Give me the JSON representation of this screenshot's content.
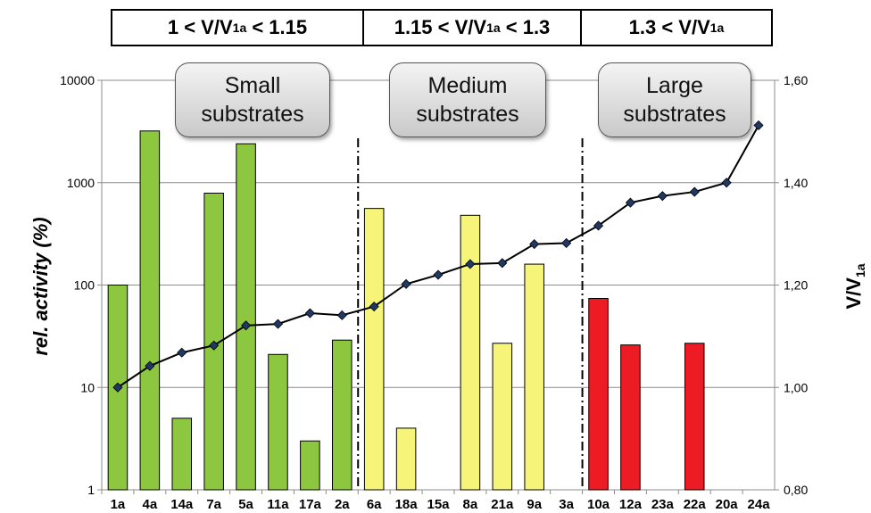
{
  "ranges": [
    {
      "pre": "1 < V/V",
      "sub": "1a",
      "post": " < 1.15"
    },
    {
      "pre": "1.15 < V/V",
      "sub": "1a",
      "post": " < 1.3"
    },
    {
      "pre": "1.3 < V/V",
      "sub": "1a",
      "post": ""
    }
  ],
  "groups": [
    {
      "line1": "Small",
      "line2": "substrates"
    },
    {
      "line1": "Medium",
      "line2": "substrates"
    },
    {
      "line1": "Large",
      "line2": "substrates"
    }
  ],
  "colors": {
    "small": "#8dc63f",
    "medium": "#f7f47a",
    "large": "#ed1c24",
    "line": "#000000",
    "marker": "#1f3864"
  },
  "chart_data": {
    "type": "bar",
    "categories": [
      "1a",
      "4a",
      "14a",
      "7a",
      "5a",
      "11a",
      "17a",
      "2a",
      "6a",
      "18a",
      "15a",
      "8a",
      "21a",
      "9a",
      "3a",
      "10a",
      "12a",
      "23a",
      "22a",
      "20a",
      "24a"
    ],
    "bar_groups": [
      "small",
      "small",
      "small",
      "small",
      "small",
      "small",
      "small",
      "small",
      "medium",
      "medium",
      "medium",
      "medium",
      "medium",
      "medium",
      "medium",
      "large",
      "large",
      "large",
      "large",
      "large",
      "large"
    ],
    "series": [
      {
        "axis": "left",
        "type": "bar",
        "values": [
          100,
          3200,
          5,
          790,
          2400,
          21,
          3,
          29,
          560,
          4,
          null,
          480,
          27,
          160,
          null,
          74,
          26,
          null,
          27,
          null,
          null
        ]
      },
      {
        "axis": "right",
        "type": "line",
        "values": [
          1.0,
          1.042,
          1.068,
          1.082,
          1.121,
          1.124,
          1.145,
          1.141,
          1.158,
          1.202,
          1.22,
          1.241,
          1.243,
          1.28,
          1.282,
          1.316,
          1.361,
          1.374,
          1.382,
          1.4,
          1.512
        ]
      }
    ],
    "ylabel_left": "rel. activity (%)",
    "ylabel_right": {
      "pre": "V/V",
      "sub": "1a"
    },
    "ylim_left": [
      1,
      10000
    ],
    "yscale_left": "log",
    "yticks_left": [
      "1",
      "10",
      "100",
      "1000",
      "10000"
    ],
    "ylim_right": [
      0.8,
      1.6
    ],
    "yticks_right": [
      "0,80",
      "1,00",
      "1,20",
      "1,40",
      "1,60"
    ],
    "dividers_after": [
      "3a"
    ],
    "grid": true
  }
}
